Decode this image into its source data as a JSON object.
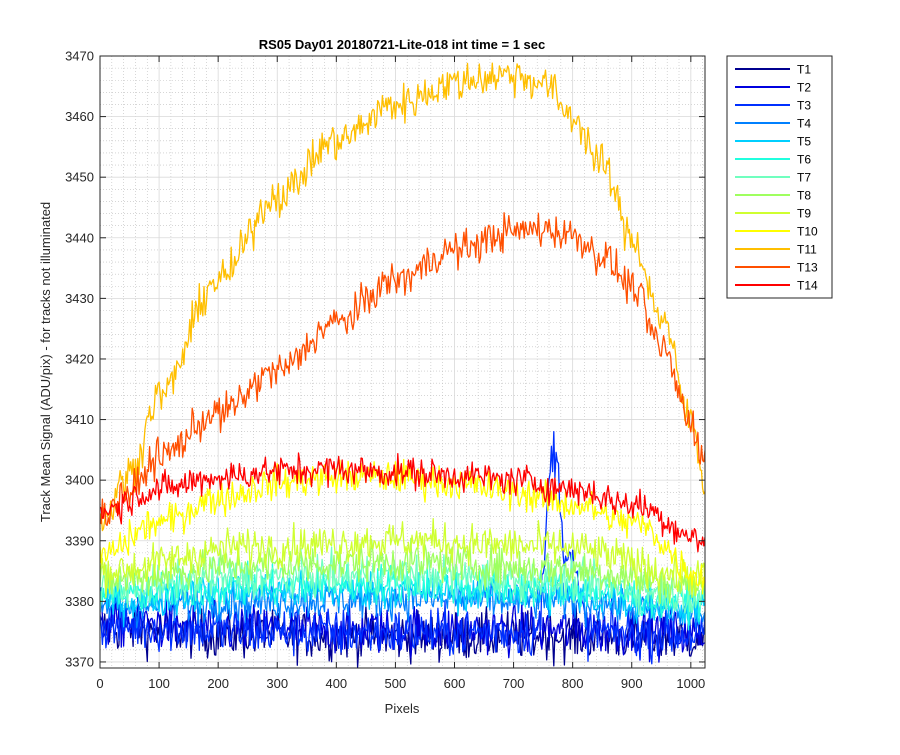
{
  "chart_data": {
    "type": "line",
    "title": "RS05 Day01 20180721-Lite-018 int time = 1 sec",
    "xlabel": "Pixels",
    "ylabel": "Track Mean Signal (ADU/pix) - for tracks not illuminated",
    "xlim": [
      0,
      1024
    ],
    "ylim": [
      3369,
      3470
    ],
    "xticks": [
      0,
      100,
      200,
      300,
      400,
      500,
      600,
      700,
      800,
      900,
      1000
    ],
    "yticks": [
      3370,
      3380,
      3390,
      3400,
      3410,
      3420,
      3430,
      3440,
      3450,
      3460,
      3470
    ],
    "grid": true,
    "minor_grid": true,
    "legend_position": "outside-top-right",
    "series": [
      {
        "name": "T1",
        "color": "#00008f",
        "noise": 2.0,
        "x": [
          0,
          256,
          512,
          768,
          1024
        ],
        "values": [
          3375.5,
          3374.5,
          3374.2,
          3374.3,
          3374.0
        ]
      },
      {
        "name": "T2",
        "color": "#0000df",
        "noise": 2.0,
        "x": [
          0,
          256,
          512,
          768,
          1024
        ],
        "values": [
          3376.5,
          3375.5,
          3375.3,
          3375.3,
          3374.8
        ]
      },
      {
        "name": "T3",
        "color": "#0030ff",
        "noise": 2.0,
        "x": [
          0,
          256,
          512,
          700,
          740,
          768,
          790,
          830,
          1024
        ],
        "values": [
          3376.0,
          3375.0,
          3374.8,
          3375.0,
          3375.0,
          3405.0,
          3388.0,
          3375.0,
          3374.5
        ]
      },
      {
        "name": "T4",
        "color": "#0080ff",
        "noise": 1.6,
        "x": [
          0,
          256,
          512,
          768,
          1024
        ],
        "values": [
          3379.0,
          3380.0,
          3380.5,
          3380.0,
          3378.0
        ]
      },
      {
        "name": "T5",
        "color": "#00cfff",
        "noise": 1.6,
        "x": [
          0,
          256,
          512,
          768,
          1024
        ],
        "values": [
          3380.0,
          3381.5,
          3381.8,
          3381.0,
          3379.0
        ]
      },
      {
        "name": "T6",
        "color": "#20ffdf",
        "noise": 1.6,
        "x": [
          0,
          256,
          512,
          768,
          1024
        ],
        "values": [
          3381.0,
          3382.5,
          3383.0,
          3382.0,
          3380.0
        ]
      },
      {
        "name": "T7",
        "color": "#70ffbf",
        "noise": 1.6,
        "x": [
          0,
          256,
          512,
          768,
          1024
        ],
        "values": [
          3382.0,
          3384.0,
          3384.5,
          3383.5,
          3381.0
        ]
      },
      {
        "name": "T8",
        "color": "#9fff5f",
        "noise": 1.6,
        "x": [
          0,
          256,
          512,
          768,
          1024
        ],
        "values": [
          3383.5,
          3386.0,
          3386.5,
          3385.5,
          3382.5
        ]
      },
      {
        "name": "T9",
        "color": "#cfff30",
        "noise": 1.6,
        "x": [
          0,
          256,
          512,
          768,
          1024
        ],
        "values": [
          3385.0,
          3389.0,
          3390.0,
          3389.0,
          3384.0
        ]
      },
      {
        "name": "T10",
        "color": "#ffff00",
        "noise": 1.4,
        "x": [
          0,
          100,
          200,
          300,
          400,
          500,
          600,
          700,
          800,
          900,
          1024
        ],
        "values": [
          3387.5,
          3393.0,
          3397.0,
          3399.5,
          3400.5,
          3400.5,
          3399.5,
          3398.0,
          3396.0,
          3393.0,
          3384.0
        ]
      },
      {
        "name": "T11",
        "color": "#ffbf00",
        "noise": 1.6,
        "x": [
          0,
          50,
          100,
          200,
          300,
          400,
          500,
          600,
          650,
          700,
          750,
          800,
          850,
          900,
          950,
          1000,
          1024
        ],
        "values": [
          3393.0,
          3401.0,
          3414.0,
          3433.0,
          3447.0,
          3456.0,
          3462.0,
          3465.5,
          3466.5,
          3467.0,
          3465.5,
          3460.0,
          3452.0,
          3440.0,
          3427.0,
          3410.0,
          3400.0
        ]
      },
      {
        "name": "T13",
        "color": "#ff4f00",
        "noise": 1.5,
        "x": [
          0,
          50,
          100,
          200,
          300,
          400,
          500,
          600,
          700,
          750,
          800,
          850,
          900,
          950,
          1000,
          1024
        ],
        "values": [
          3394.0,
          3398.0,
          3404.0,
          3411.0,
          3418.0,
          3426.0,
          3433.0,
          3438.0,
          3441.0,
          3441.5,
          3440.5,
          3437.0,
          3432.0,
          3422.0,
          3410.0,
          3403.0
        ]
      },
      {
        "name": "T14",
        "color": "#ff0000",
        "noise": 1.3,
        "x": [
          0,
          100,
          200,
          300,
          400,
          500,
          600,
          700,
          800,
          900,
          1024
        ],
        "values": [
          3395.0,
          3398.5,
          3400.5,
          3401.5,
          3401.8,
          3401.3,
          3400.8,
          3400.0,
          3398.5,
          3396.0,
          3390.0
        ]
      }
    ]
  }
}
